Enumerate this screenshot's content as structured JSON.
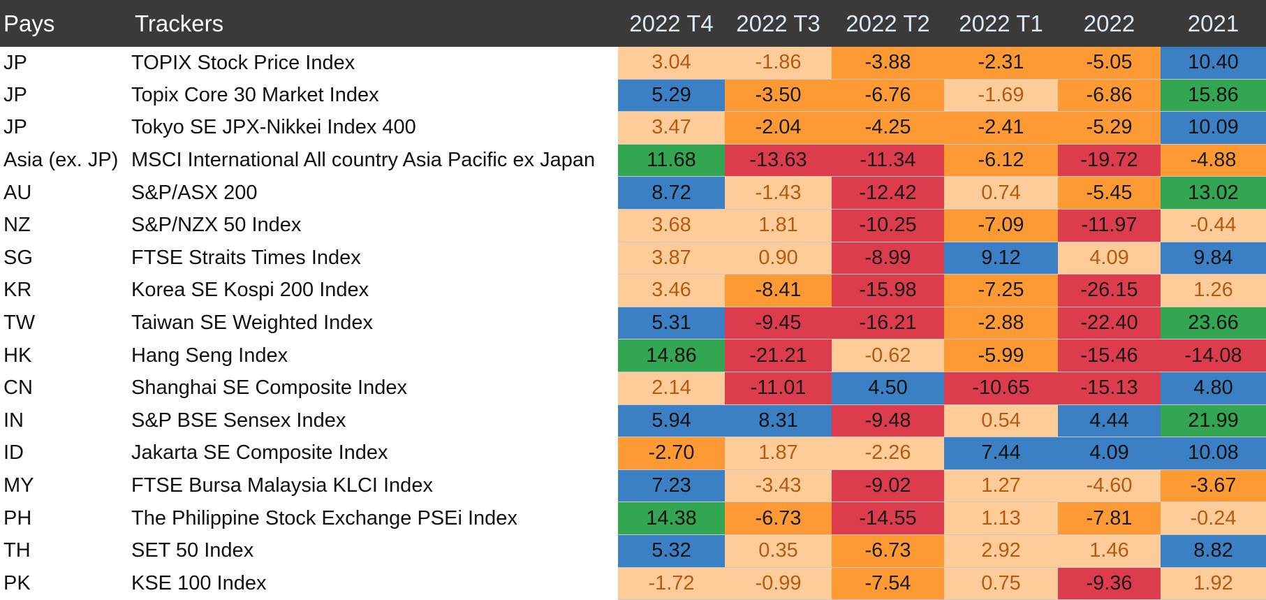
{
  "chart_data": {
    "type": "heatmap",
    "headers": {
      "country": "Pays",
      "tracker": "Trackers",
      "periods": [
        "2022 T4",
        "2022 T3",
        "2022 T2",
        "2022 T1",
        "2022",
        "2021"
      ]
    },
    "colors": {
      "header_bg": "#3a3a3a",
      "peach": "#fdcc99",
      "orange": "#fe9a33",
      "red": "#dc3c4b",
      "blue": "#3b80c4",
      "green": "#33a652"
    },
    "rows": [
      {
        "country": "JP",
        "tracker": "TOPIX Stock Price Index",
        "values": [
          "3.04",
          "-1.86",
          "-3.88",
          "-2.31",
          "-5.05",
          "10.40"
        ],
        "colors": [
          "peach",
          "peach",
          "orange",
          "orange",
          "orange",
          "blue"
        ]
      },
      {
        "country": "JP",
        "tracker": "Topix Core 30 Market Index",
        "values": [
          "5.29",
          "-3.50",
          "-6.76",
          "-1.69",
          "-6.86",
          "15.86"
        ],
        "colors": [
          "blue",
          "orange",
          "orange",
          "peach",
          "orange",
          "green"
        ]
      },
      {
        "country": "JP",
        "tracker": "Tokyo SE JPX-Nikkei Index 400",
        "values": [
          "3.47",
          "-2.04",
          "-4.25",
          "-2.41",
          "-5.29",
          "10.09"
        ],
        "colors": [
          "peach",
          "orange",
          "orange",
          "orange",
          "orange",
          "blue"
        ]
      },
      {
        "country": "Asia (ex. JP)",
        "tracker": "MSCI International All country Asia Pacific ex Japan",
        "values": [
          "11.68",
          "-13.63",
          "-11.34",
          "-6.12",
          "-19.72",
          "-4.88"
        ],
        "colors": [
          "green",
          "red",
          "red",
          "orange",
          "red",
          "orange"
        ]
      },
      {
        "country": "AU",
        "tracker": "S&P/ASX 200",
        "values": [
          "8.72",
          "-1.43",
          "-12.42",
          "0.74",
          "-5.45",
          "13.02"
        ],
        "colors": [
          "blue",
          "peach",
          "red",
          "peach",
          "orange",
          "green"
        ]
      },
      {
        "country": "NZ",
        "tracker": "S&P/NZX 50 Index",
        "values": [
          "3.68",
          "1.81",
          "-10.25",
          "-7.09",
          "-11.97",
          "-0.44"
        ],
        "colors": [
          "peach",
          "peach",
          "red",
          "orange",
          "red",
          "peach"
        ]
      },
      {
        "country": "SG",
        "tracker": "FTSE Straits Times Index",
        "values": [
          "3.87",
          "0.90",
          "-8.99",
          "9.12",
          "4.09",
          "9.84"
        ],
        "colors": [
          "peach",
          "peach",
          "red",
          "blue",
          "peach",
          "blue"
        ]
      },
      {
        "country": "KR",
        "tracker": "Korea SE Kospi 200 Index",
        "values": [
          "3.46",
          "-8.41",
          "-15.98",
          "-7.25",
          "-26.15",
          "1.26"
        ],
        "colors": [
          "peach",
          "orange",
          "red",
          "orange",
          "red",
          "peach"
        ]
      },
      {
        "country": "TW",
        "tracker": "Taiwan SE Weighted Index",
        "values": [
          "5.31",
          "-9.45",
          "-16.21",
          "-2.88",
          "-22.40",
          "23.66"
        ],
        "colors": [
          "blue",
          "red",
          "red",
          "orange",
          "red",
          "green"
        ]
      },
      {
        "country": "HK",
        "tracker": "Hang Seng Index",
        "values": [
          "14.86",
          "-21.21",
          "-0.62",
          "-5.99",
          "-15.46",
          "-14.08"
        ],
        "colors": [
          "green",
          "red",
          "peach",
          "orange",
          "red",
          "red"
        ]
      },
      {
        "country": "CN",
        "tracker": "Shanghai SE Composite Index",
        "values": [
          "2.14",
          "-11.01",
          "4.50",
          "-10.65",
          "-15.13",
          "4.80"
        ],
        "colors": [
          "peach",
          "red",
          "blue",
          "red",
          "red",
          "blue"
        ]
      },
      {
        "country": "IN",
        "tracker": "S&P BSE Sensex Index",
        "values": [
          "5.94",
          "8.31",
          "-9.48",
          "0.54",
          "4.44",
          "21.99"
        ],
        "colors": [
          "blue",
          "blue",
          "red",
          "peach",
          "blue",
          "green"
        ]
      },
      {
        "country": "ID",
        "tracker": "Jakarta SE Composite Index",
        "values": [
          "-2.70",
          "1.87",
          "-2.26",
          "7.44",
          "4.09",
          "10.08"
        ],
        "colors": [
          "orange",
          "peach",
          "peach",
          "blue",
          "blue",
          "blue"
        ]
      },
      {
        "country": "MY",
        "tracker": "FTSE Bursa Malaysia KLCI Index",
        "values": [
          "7.23",
          "-3.43",
          "-9.02",
          "1.27",
          "-4.60",
          "-3.67"
        ],
        "colors": [
          "blue",
          "peach",
          "red",
          "peach",
          "peach",
          "orange"
        ]
      },
      {
        "country": "PH",
        "tracker": "The Philippine Stock Exchange PSEi Index",
        "values": [
          "14.38",
          "-6.73",
          "-14.55",
          "1.13",
          "-7.81",
          "-0.24"
        ],
        "colors": [
          "green",
          "orange",
          "red",
          "peach",
          "orange",
          "peach"
        ]
      },
      {
        "country": "TH",
        "tracker": "SET 50 Index",
        "values": [
          "5.32",
          "0.35",
          "-6.73",
          "2.92",
          "1.46",
          "8.82"
        ],
        "colors": [
          "blue",
          "peach",
          "orange",
          "peach",
          "peach",
          "blue"
        ]
      },
      {
        "country": "PK",
        "tracker": "KSE 100 Index",
        "values": [
          "-1.72",
          "-0.99",
          "-7.54",
          "0.75",
          "-9.36",
          "1.92"
        ],
        "colors": [
          "peach",
          "peach",
          "orange",
          "peach",
          "red",
          "peach"
        ]
      }
    ]
  }
}
